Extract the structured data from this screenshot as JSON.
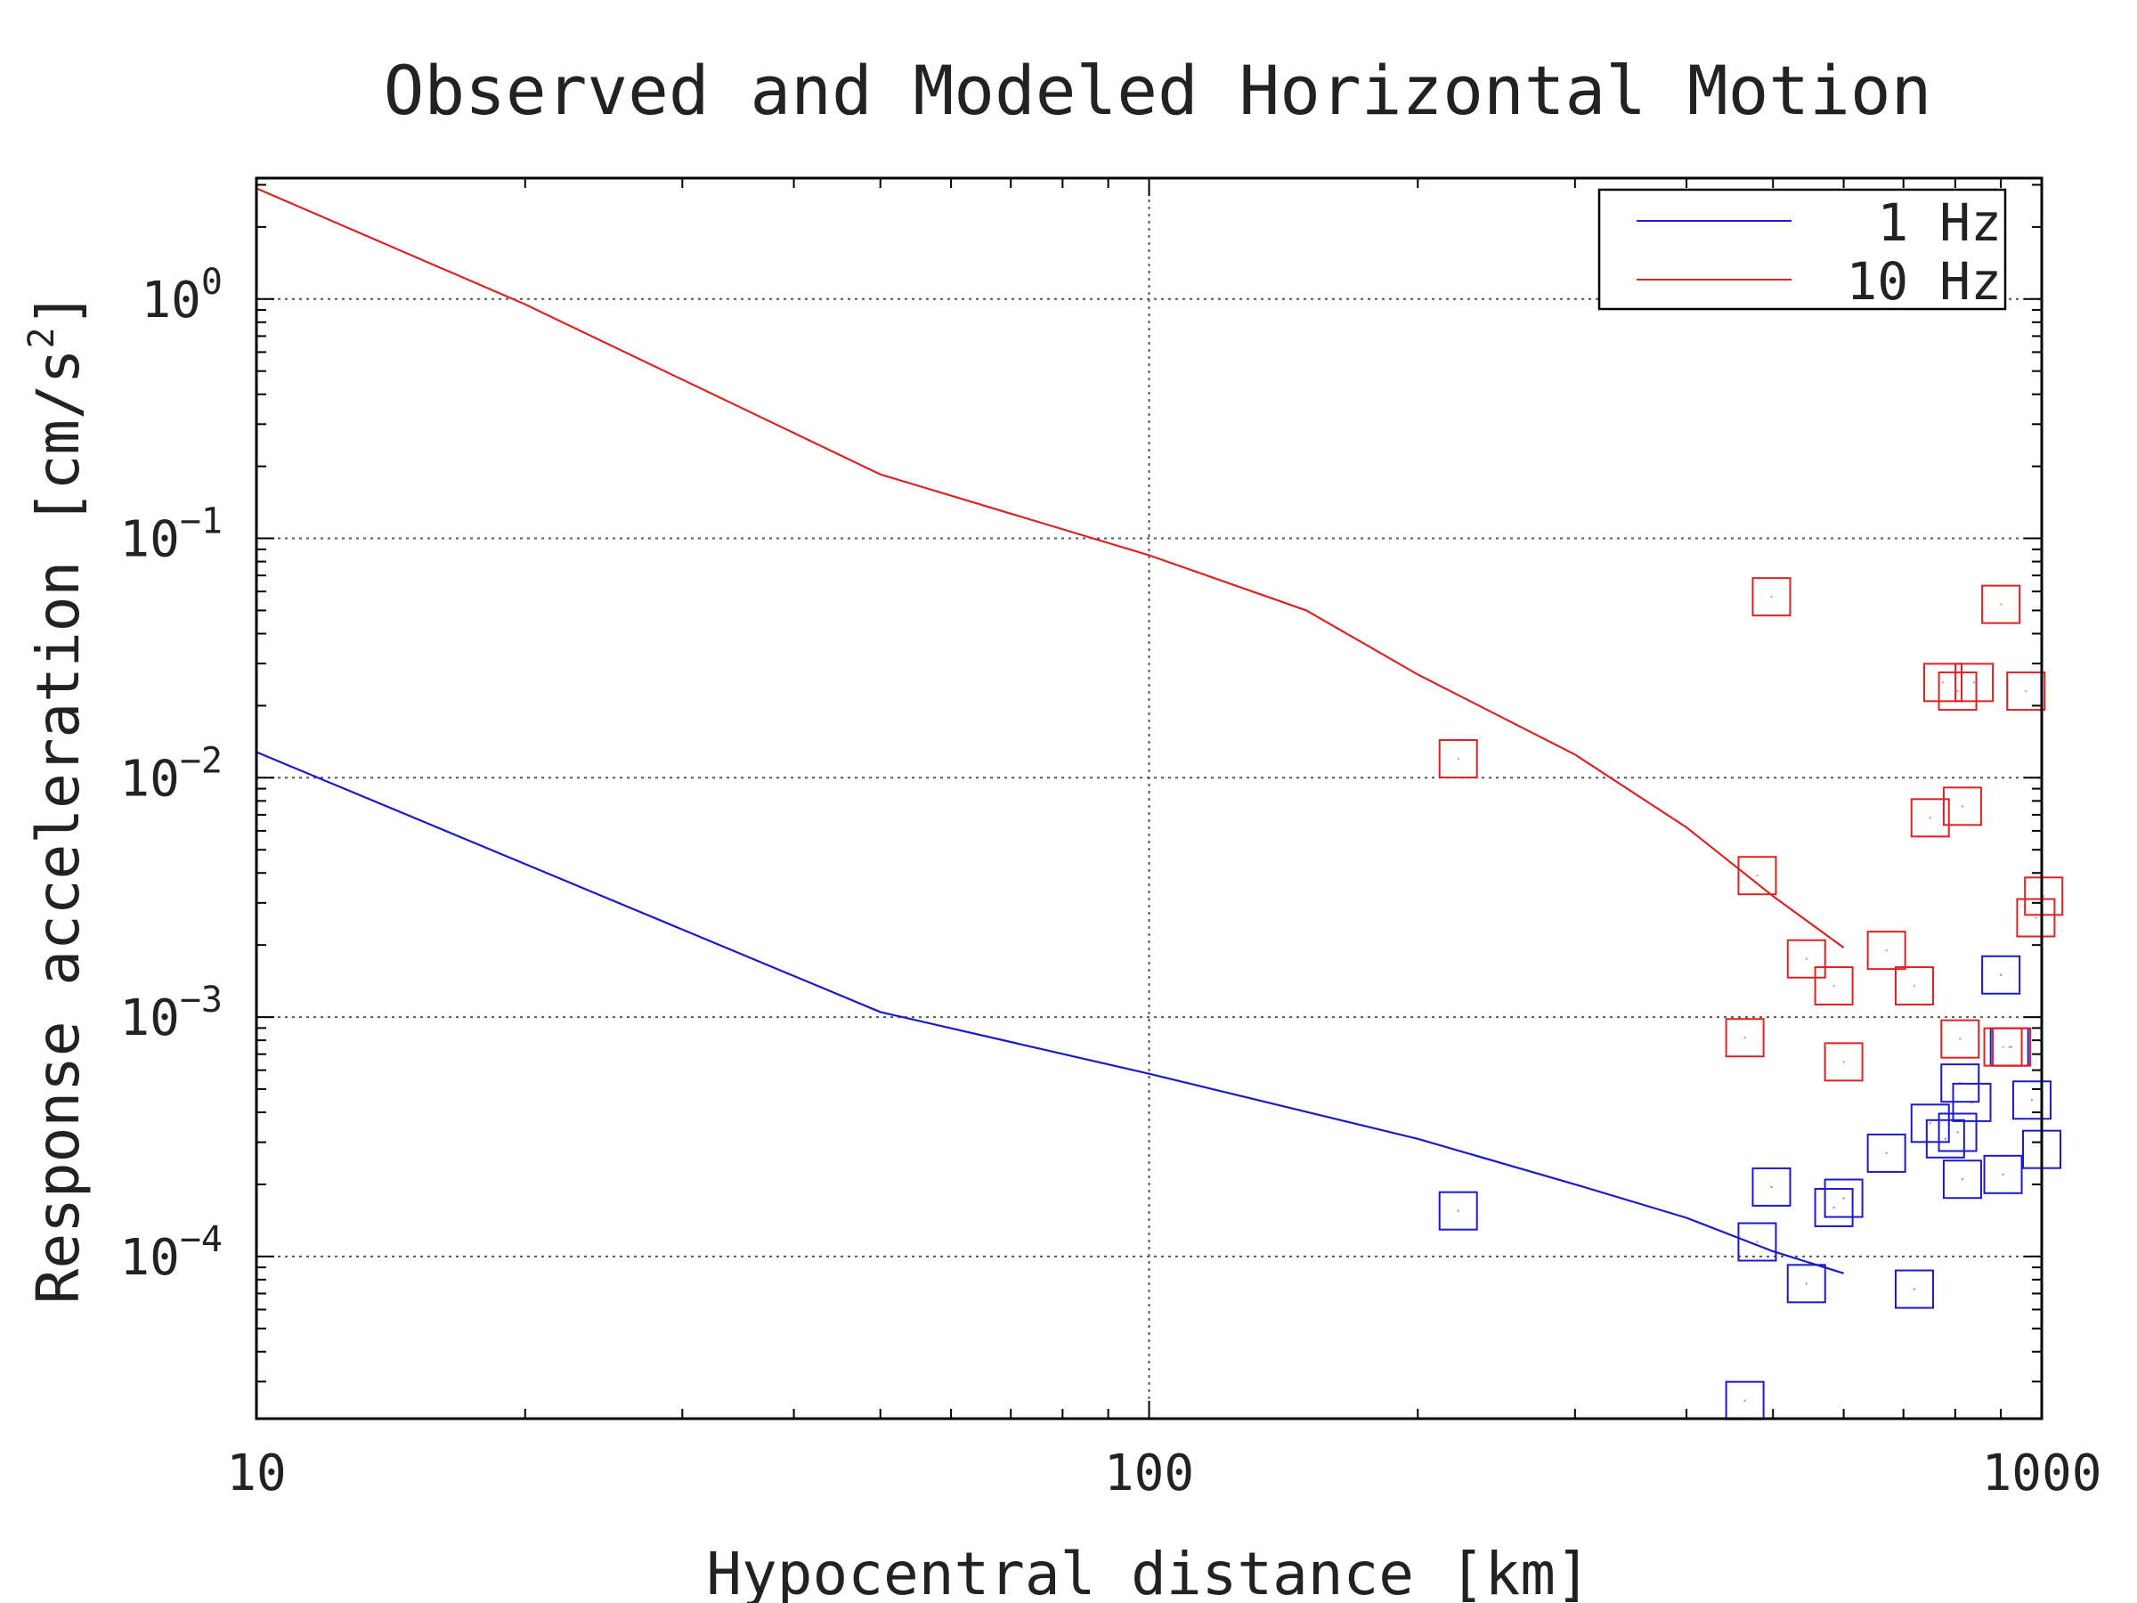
{
  "chart_data": {
    "type": "scatter",
    "title": "Observed and Modeled Horizontal Motion",
    "xlabel": "Hypocentral distance [km]",
    "ylabel": {
      "main": "Response acceleration [cm/s",
      "sup": "2",
      "close": "]"
    },
    "xscale": "log",
    "yscale": "log",
    "xlim": [
      10,
      1000
    ],
    "ylim": [
      2.1e-05,
      3.2
    ],
    "x_ticks": [
      {
        "value": 10,
        "label": "10"
      },
      {
        "value": 100,
        "label": "100"
      },
      {
        "value": 1000,
        "label": "1000"
      }
    ],
    "y_ticks": [
      {
        "value": 1,
        "base": "10",
        "exp": "0"
      },
      {
        "value": 0.1,
        "base": "10",
        "exp": "−1"
      },
      {
        "value": 0.01,
        "base": "10",
        "exp": "−2"
      },
      {
        "value": 0.001,
        "base": "10",
        "exp": "−3"
      },
      {
        "value": 0.0001,
        "base": "10",
        "exp": "−4"
      }
    ],
    "grid": true,
    "legend": {
      "position": "top-right",
      "entries": [
        {
          "label": "1 Hz",
          "color": "#1a1acc"
        },
        {
          "label": "10 Hz",
          "color": "#dd2222"
        }
      ]
    },
    "series": [
      {
        "name": "1 Hz",
        "kind": "model-line",
        "color": "#1a1acc",
        "points": [
          [
            10,
            0.0128
          ],
          [
            50,
            0.00105
          ],
          [
            100,
            0.00058
          ],
          [
            200,
            0.00031
          ],
          [
            300,
            0.0002
          ],
          [
            400,
            0.000145
          ],
          [
            500,
            0.000105
          ],
          [
            600,
            8.5e-05
          ]
        ]
      },
      {
        "name": "10 Hz",
        "kind": "model-line",
        "color": "#dd2222",
        "points": [
          [
            10,
            2.9
          ],
          [
            20,
            0.95
          ],
          [
            50,
            0.185
          ],
          [
            100,
            0.085
          ],
          [
            150,
            0.05
          ],
          [
            200,
            0.027
          ],
          [
            300,
            0.0125
          ],
          [
            400,
            0.0062
          ],
          [
            500,
            0.0032
          ],
          [
            600,
            0.00195
          ]
        ]
      },
      {
        "name": "1 Hz",
        "kind": "observed",
        "color": "#1a1acc",
        "points": [
          [
            222,
            0.000155
          ],
          [
            465,
            2.5e-05
          ],
          [
            480,
            0.000115
          ],
          [
            498,
            0.000195
          ],
          [
            545,
            7.7e-05
          ],
          [
            585,
            0.00016
          ],
          [
            600,
            0.000175
          ],
          [
            670,
            0.00027
          ],
          [
            720,
            7.3e-05
          ],
          [
            750,
            0.00036
          ],
          [
            780,
            0.00031
          ],
          [
            805,
            0.00033
          ],
          [
            810,
            0.00053
          ],
          [
            815,
            0.00021
          ],
          [
            835,
            0.00044
          ],
          [
            900,
            0.0015
          ],
          [
            905,
            0.00022
          ],
          [
            920,
            0.00075
          ],
          [
            975,
            0.00045
          ],
          [
            1000,
            0.00028
          ]
        ]
      },
      {
        "name": "10 Hz",
        "kind": "observed",
        "color": "#dd2222",
        "points": [
          [
            222,
            0.012
          ],
          [
            465,
            0.00082
          ],
          [
            480,
            0.0039
          ],
          [
            498,
            0.057
          ],
          [
            545,
            0.00175
          ],
          [
            585,
            0.00135
          ],
          [
            600,
            0.00065
          ],
          [
            670,
            0.0019
          ],
          [
            720,
            0.00135
          ],
          [
            750,
            0.0068
          ],
          [
            775,
            0.025
          ],
          [
            805,
            0.023
          ],
          [
            810,
            0.00081
          ],
          [
            815,
            0.0076
          ],
          [
            840,
            0.025
          ],
          [
            900,
            0.053
          ],
          [
            905,
            0.00075
          ],
          [
            925,
            0.00075
          ],
          [
            960,
            0.023
          ],
          [
            985,
            0.0026
          ],
          [
            1005,
            0.0032
          ]
        ]
      }
    ]
  }
}
